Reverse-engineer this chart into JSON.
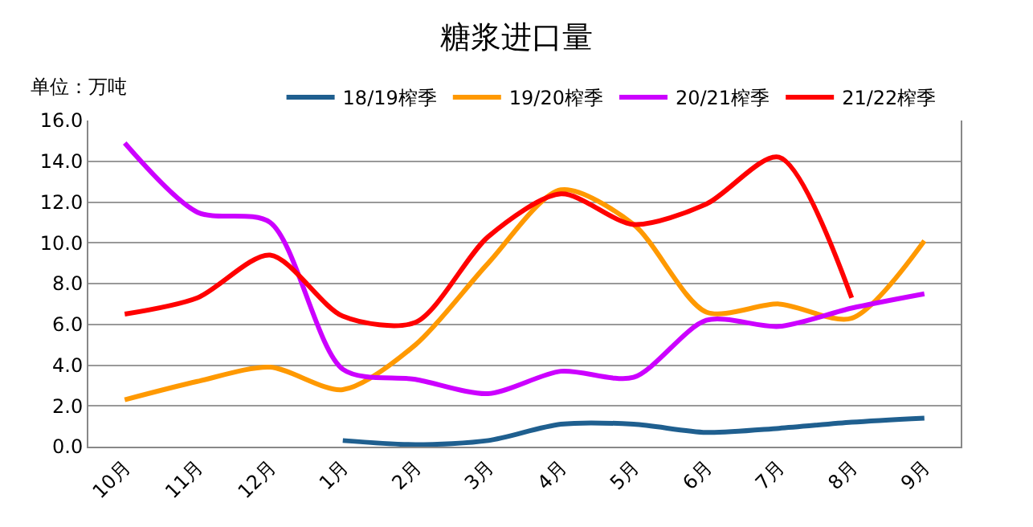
{
  "chart_data": {
    "type": "line",
    "title": "糖浆进口量",
    "annotations": [
      "单位：万吨"
    ],
    "categories": [
      "10月",
      "11月",
      "12月",
      "1月",
      "2月",
      "3月",
      "4月",
      "5月",
      "6月",
      "7月",
      "8月",
      "9月"
    ],
    "series": [
      {
        "name": "18/19榨季",
        "color": "#1f5f8f",
        "values": [
          null,
          null,
          null,
          0.3,
          0.1,
          0.3,
          1.1,
          1.1,
          0.7,
          0.9,
          1.2,
          1.4
        ]
      },
      {
        "name": "19/20榨季",
        "color": "#ff9900",
        "values": [
          2.3,
          3.2,
          3.9,
          2.8,
          5.0,
          9.0,
          12.6,
          10.9,
          6.6,
          7.0,
          6.3,
          10.1
        ]
      },
      {
        "name": "20/21榨季",
        "color": "#cc00ff",
        "values": [
          14.9,
          11.5,
          11.0,
          3.8,
          3.3,
          2.6,
          3.7,
          3.4,
          6.2,
          5.9,
          6.8,
          7.5
        ]
      },
      {
        "name": "21/22榨季",
        "color": "#ff0000",
        "values": [
          6.5,
          7.3,
          9.4,
          6.4,
          6.1,
          10.3,
          12.4,
          10.9,
          11.9,
          14.2,
          7.3,
          null
        ]
      }
    ],
    "ylim": [
      0,
      16
    ],
    "yticks": [
      {
        "value": 0,
        "label": "0.0"
      },
      {
        "value": 2,
        "label": "2.0"
      },
      {
        "value": 4,
        "label": "4.0"
      },
      {
        "value": 6,
        "label": "6.0"
      },
      {
        "value": 8,
        "label": "8.0"
      },
      {
        "value": 10,
        "label": "10.0"
      },
      {
        "value": 12,
        "label": "12.0"
      },
      {
        "value": 14,
        "label": "14.0"
      },
      {
        "value": 16,
        "label": "16.0"
      }
    ],
    "grid": "y",
    "legend": "top",
    "marker": "none",
    "line_style": "solid"
  }
}
